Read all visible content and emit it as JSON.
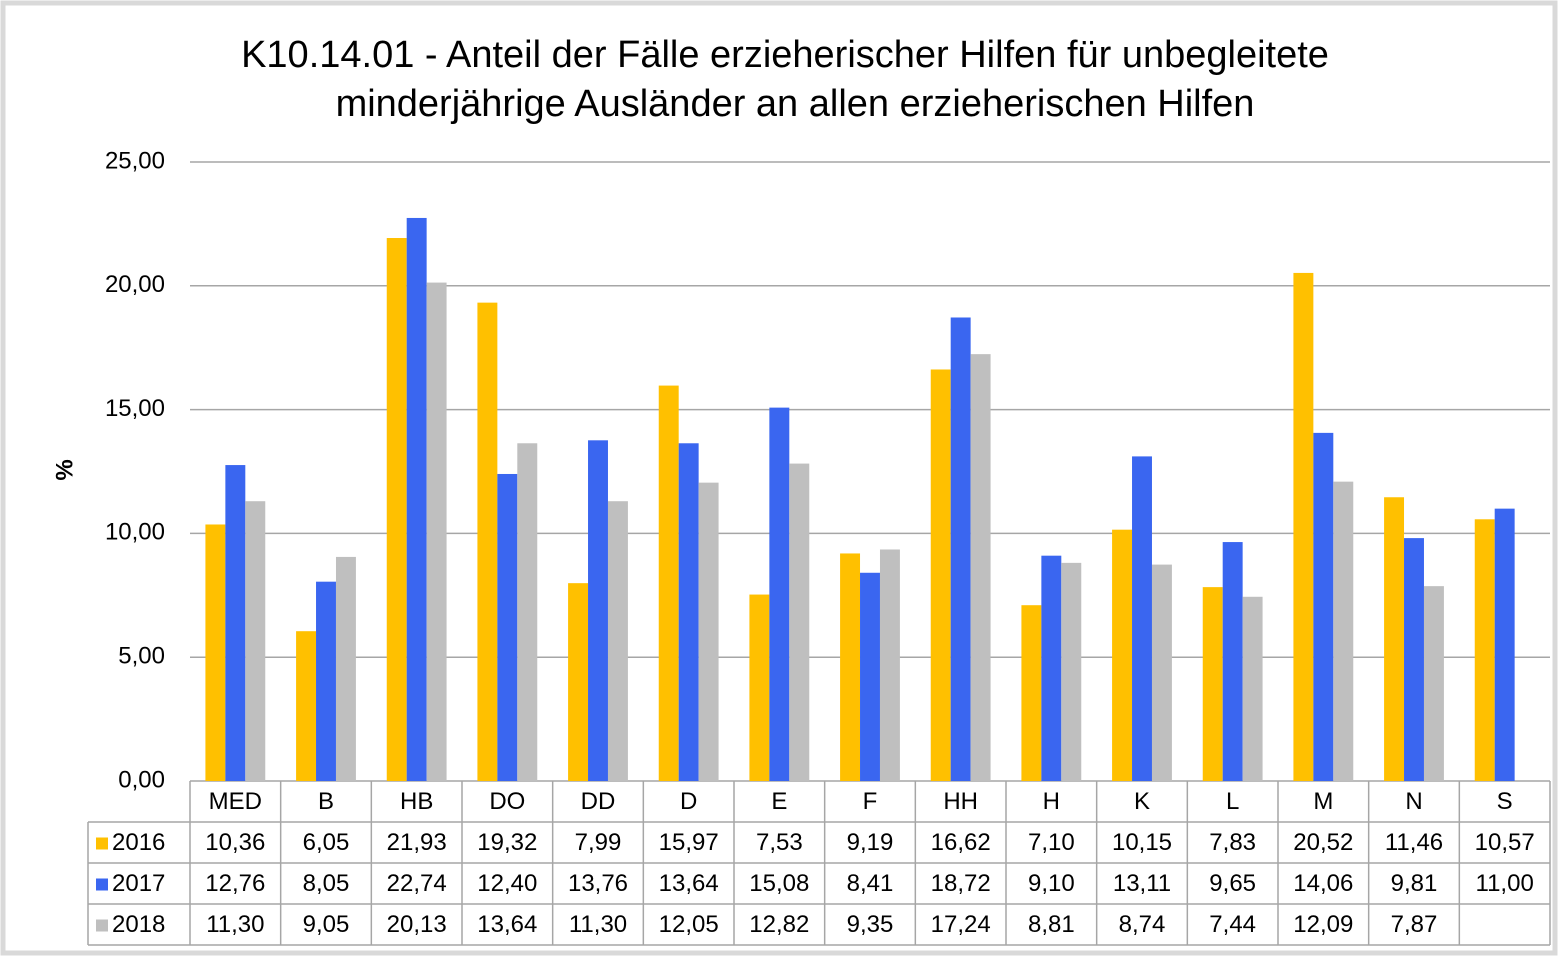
{
  "chart_data": {
    "type": "bar",
    "title": [
      "K10.14.01 - Anteil der Fälle erzieherischer Hilfen für unbegleitete",
      "minderjährige Ausländer an allen erzieherischen Hilfen"
    ],
    "y_label": "%",
    "categories": [
      "MED",
      "B",
      "HB",
      "DO",
      "DD",
      "D",
      "E",
      "F",
      "HH",
      "H",
      "K",
      "L",
      "M",
      "N",
      "S"
    ],
    "series": [
      {
        "name": "2016",
        "color": "#ffc000",
        "values": [
          10.36,
          6.05,
          21.93,
          19.32,
          7.99,
          15.97,
          7.53,
          9.19,
          16.62,
          7.1,
          10.15,
          7.83,
          20.52,
          11.46,
          10.57
        ],
        "value_labels": [
          "10,36",
          "6,05",
          "21,93",
          "19,32",
          "7,99",
          "15,97",
          "7,53",
          "9,19",
          "16,62",
          "7,10",
          "10,15",
          "7,83",
          "20,52",
          "11,46",
          "10,57"
        ]
      },
      {
        "name": "2017",
        "color": "#3a66f0",
        "values": [
          12.76,
          8.05,
          22.74,
          12.4,
          13.76,
          13.64,
          15.08,
          8.41,
          18.72,
          9.1,
          13.11,
          9.65,
          14.06,
          9.81,
          11.0
        ],
        "value_labels": [
          "12,76",
          "8,05",
          "22,74",
          "12,40",
          "13,76",
          "13,64",
          "15,08",
          "8,41",
          "18,72",
          "9,10",
          "13,11",
          "9,65",
          "14,06",
          "9,81",
          "11,00"
        ]
      },
      {
        "name": "2018",
        "color": "#bfbfbf",
        "values": [
          11.3,
          9.05,
          20.13,
          13.64,
          11.3,
          12.05,
          12.82,
          9.35,
          17.24,
          8.81,
          8.74,
          7.44,
          12.09,
          7.87,
          null
        ],
        "value_labels": [
          "11,30",
          "9,05",
          "20,13",
          "13,64",
          "11,30",
          "12,05",
          "12,82",
          "9,35",
          "17,24",
          "8,81",
          "8,74",
          "7,44",
          "12,09",
          "7,87",
          null
        ]
      }
    ],
    "ylim": [
      0,
      25
    ],
    "yticks": [
      {
        "value": 0,
        "label": "0,00"
      },
      {
        "value": 5,
        "label": "5,00"
      },
      {
        "value": 10,
        "label": "10,00"
      },
      {
        "value": 15,
        "label": "15,00"
      },
      {
        "value": 20,
        "label": "20,00"
      },
      {
        "value": 25,
        "label": "25,00"
      }
    ],
    "grid": true,
    "data_table": true
  }
}
